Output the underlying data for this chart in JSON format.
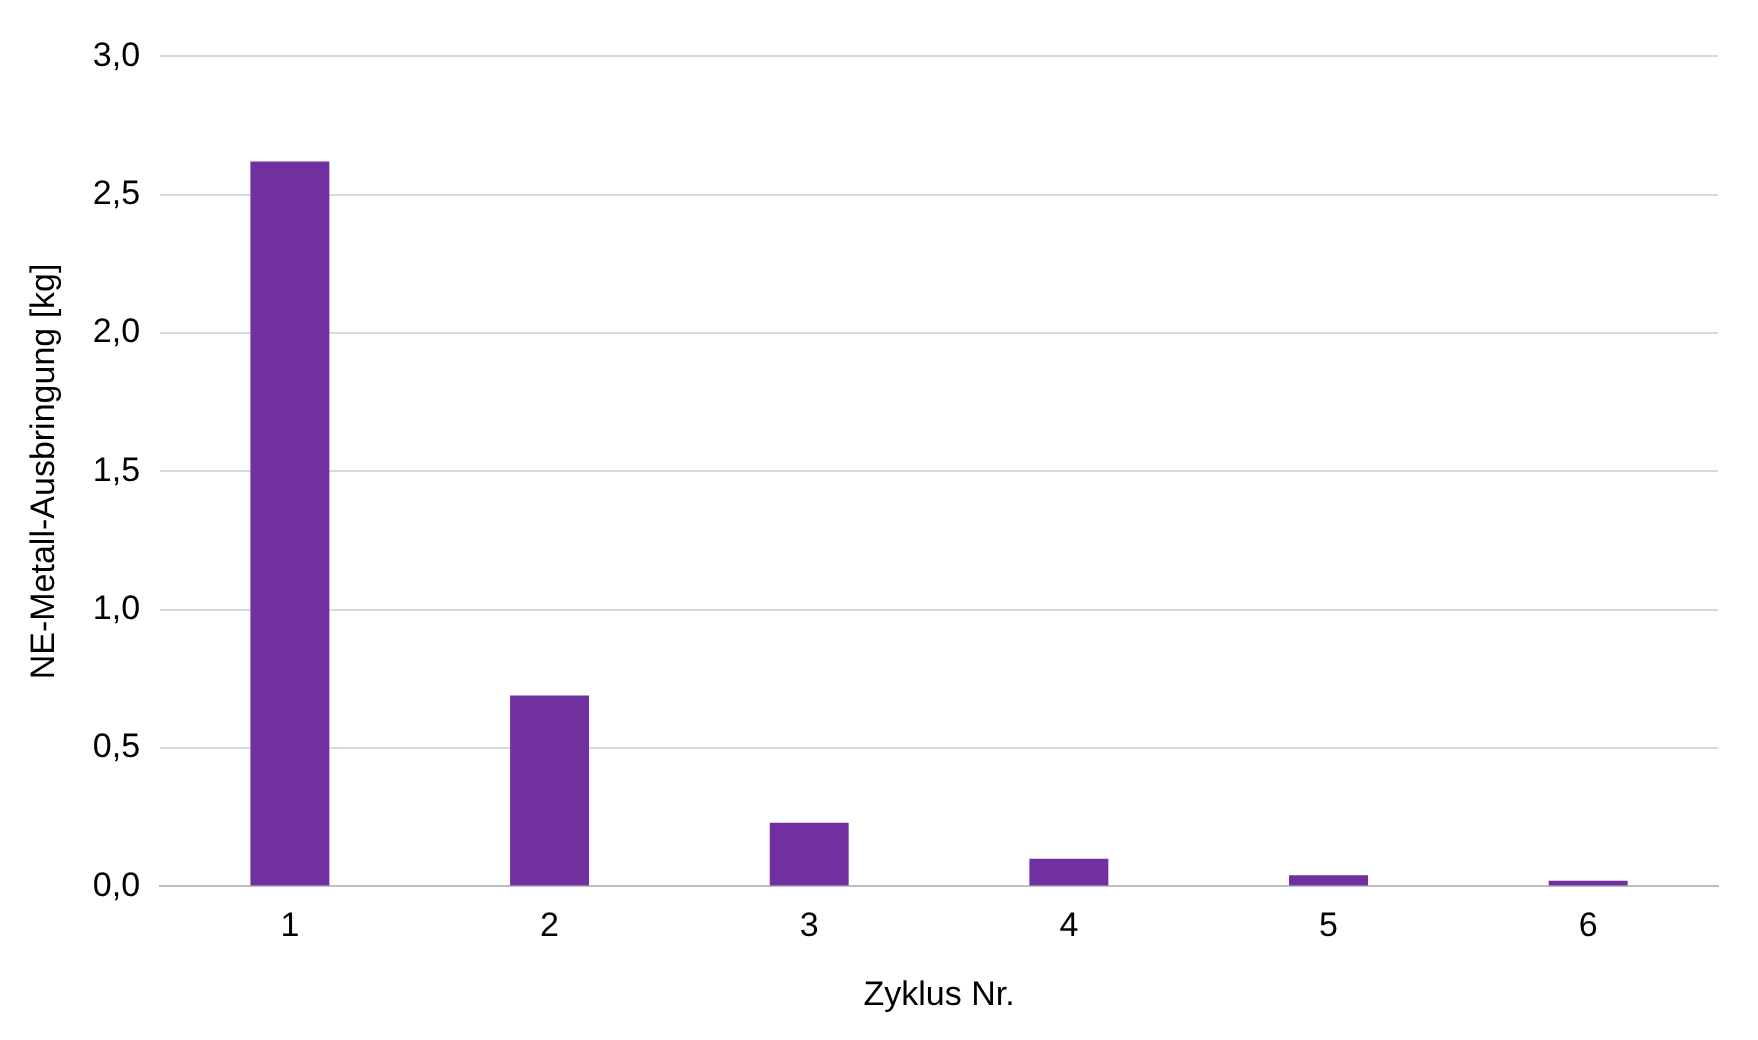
{
  "chart_data": {
    "type": "bar",
    "xlabel": "Zyklus Nr.",
    "ylabel": "NE-Metall-Ausbringung [kg]",
    "categories": [
      "1",
      "2",
      "3",
      "4",
      "5",
      "6"
    ],
    "values": [
      2.62,
      0.69,
      0.23,
      0.1,
      0.04,
      0.02
    ],
    "color": "#7030a0",
    "ylim": [
      0,
      3
    ],
    "yticks": [
      {
        "value": 0,
        "label": "0,0"
      },
      {
        "value": 0.5,
        "label": "0,5"
      },
      {
        "value": 1,
        "label": "1,0"
      },
      {
        "value": 1.5,
        "label": "1,5"
      },
      {
        "value": 2,
        "label": "2,0"
      },
      {
        "value": 2.5,
        "label": "2,5"
      },
      {
        "value": 3,
        "label": "3,0"
      }
    ],
    "grid": "y"
  }
}
